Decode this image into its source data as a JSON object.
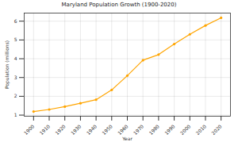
{
  "chart_data": {
    "type": "line",
    "title": "Maryland Population Growth (1900-2020)",
    "x_label": "Year",
    "y_label": "Population (millions)",
    "x": [
      1900,
      1910,
      1920,
      1930,
      1940,
      1950,
      1960,
      1970,
      1980,
      1990,
      2000,
      2010,
      2020
    ],
    "values": [
      1.19,
      1.3,
      1.45,
      1.63,
      1.82,
      2.34,
      3.1,
      3.92,
      4.22,
      4.78,
      5.3,
      5.77,
      6.18
    ],
    "color": "#ffa500",
    "marker": "circle",
    "line_style": "solid",
    "xlim": [
      1894,
      2026
    ],
    "xticks": [
      1900,
      1910,
      1920,
      1930,
      1940,
      1950,
      1960,
      1970,
      1980,
      1990,
      2000,
      2010,
      2020
    ],
    "ylim": [
      0.94,
      6.43
    ],
    "yticks": [
      1,
      2,
      3,
      4,
      5,
      6
    ],
    "grid": true
  }
}
